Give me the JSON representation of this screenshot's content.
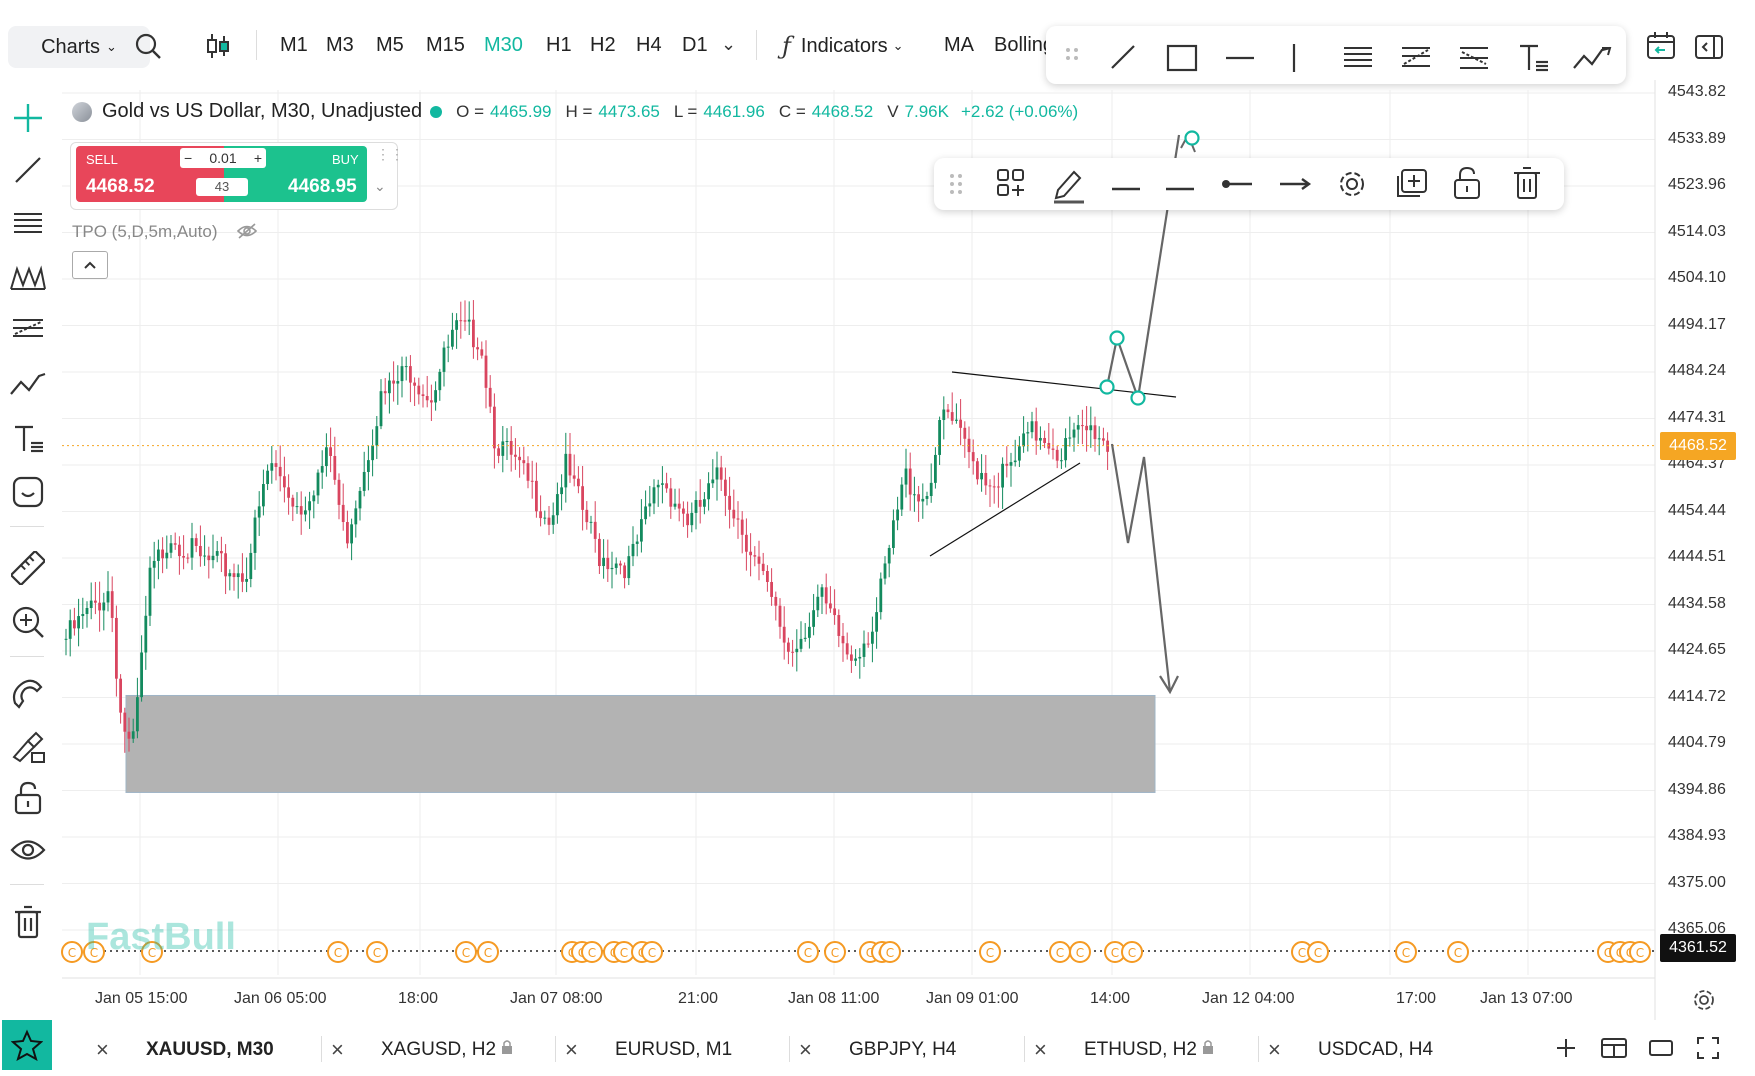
{
  "toolbar": {
    "charts_label": "Charts",
    "timeframes": [
      "M1",
      "M3",
      "M5",
      "M15",
      "M30",
      "H1",
      "H2",
      "H4",
      "D1"
    ],
    "active_timeframe": "M30",
    "indicators_label": "Indicators",
    "ma_label": "MA",
    "bollinger_label": "Bolling"
  },
  "symbol_info": {
    "title": "Gold vs US Dollar, M30, Unadjusted",
    "o_label": "O =",
    "o_value": "4465.99",
    "h_label": "H =",
    "h_value": "4473.65",
    "l_label": "L =",
    "l_value": "4461.96",
    "c_label": "C =",
    "c_value": "4468.52",
    "v_label": "V",
    "v_value": "7.96K",
    "change": "+2.62 (+0.06%)"
  },
  "trade_panel": {
    "sell_label": "SELL",
    "buy_label": "BUY",
    "lot": "0.01",
    "spread": "43",
    "sell_price": "4468.52",
    "buy_price": "4468.95"
  },
  "tpo_label": "TPO (5,D,5m,Auto)",
  "price_axis": [
    "4543.82",
    "4533.89",
    "4523.96",
    "4514.03",
    "4504.10",
    "4494.17",
    "4484.24",
    "4474.31",
    "4464.37",
    "4454.44",
    "4444.51",
    "4434.58",
    "4424.65",
    "4414.72",
    "4404.79",
    "4394.86",
    "4384.93",
    "4375.00",
    "4365.06"
  ],
  "current_price_tag": "4468.52",
  "bottom_price_tag": "4361.52",
  "time_axis": [
    "Jan 05 15:00",
    "Jan 06 05:00",
    "18:00",
    "Jan 07 08:00",
    "21:00",
    "Jan 08 11:00",
    "Jan 09 01:00",
    "14:00",
    "Jan 12 04:00",
    "17:00",
    "Jan 13 07:00"
  ],
  "watermark": "FastBull",
  "tabs": [
    {
      "label": "XAUUSD, M30",
      "locked": false
    },
    {
      "label": "XAGUSD, H2",
      "locked": true
    },
    {
      "label": "EURUSD, M1",
      "locked": false
    },
    {
      "label": "GBPJPY, H4",
      "locked": false
    },
    {
      "label": "ETHUSD, H2",
      "locked": true
    },
    {
      "label": "USDCAD, H4",
      "locked": false
    }
  ],
  "colors": {
    "accent": "#12b8a0",
    "down": "#d9455f",
    "up": "#138a5e",
    "price_tag": "#f5a623",
    "zone": "#b3b3b3"
  }
}
